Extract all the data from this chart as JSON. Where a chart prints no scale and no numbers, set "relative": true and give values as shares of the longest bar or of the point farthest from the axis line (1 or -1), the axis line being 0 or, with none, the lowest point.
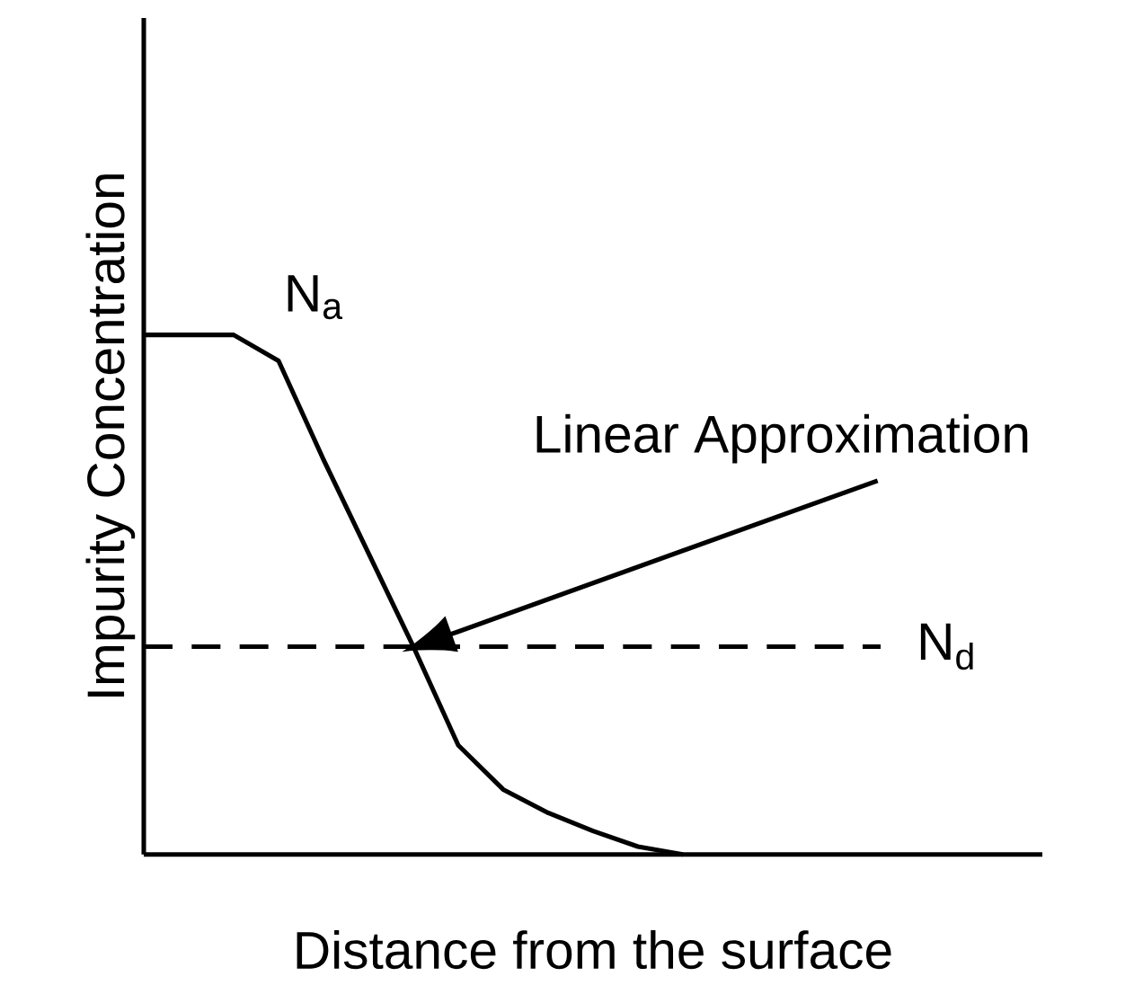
{
  "chart_data": {
    "type": "line",
    "relative": true,
    "xlabel": "Distance from the surface",
    "ylabel": "Impurity Concentration",
    "marker": "none",
    "line_style": "solid",
    "tick_labels": false,
    "categories": [
      null,
      null,
      null,
      null,
      null,
      null,
      null,
      null,
      null,
      null,
      null,
      null,
      null,
      null,
      null,
      null,
      null,
      null,
      null,
      null,
      null
    ],
    "series": [
      {
        "name": "N$_{a}$",
        "color": "#000000",
        "values": [
          1,
          1,
          1,
          0.95,
          0.76,
          0.58,
          0.4,
          0.21,
          0.125,
          0.08,
          0.045,
          0.015,
          0,
          null,
          null,
          null,
          null,
          null,
          null,
          null,
          null
        ]
      }
    ],
    "ref_lines": [
      {
        "axis": "y",
        "value": 0.4,
        "label": "N$_{d}$",
        "color": "#000000",
        "line_style": "dashed"
      }
    ],
    "annotations": [
      "Linear Approximation"
    ]
  }
}
